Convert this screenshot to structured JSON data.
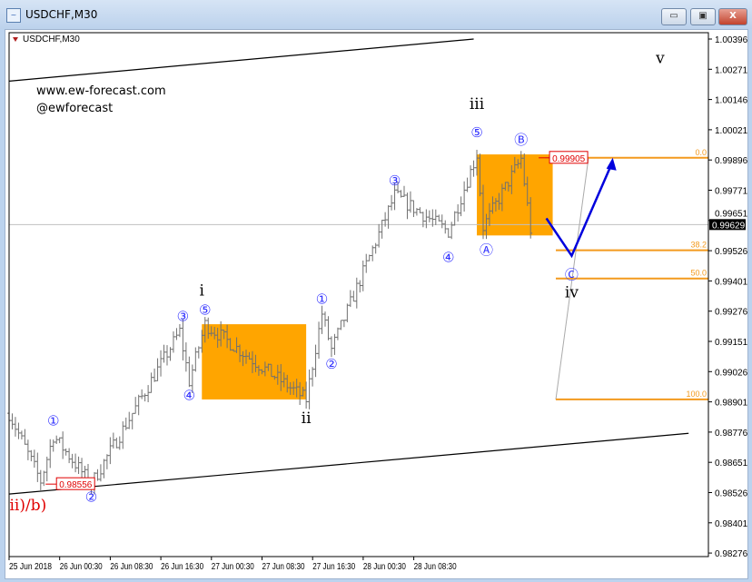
{
  "window": {
    "title": "USDCHF,M30",
    "icon": "chart-window-icon",
    "buttons": {
      "minimize": "▭",
      "restore": "▣",
      "close": "X"
    }
  },
  "chart_label": "USDCHF,M30",
  "watermark": {
    "site": "www.ew-forecast.com",
    "handle": "@ewforecast"
  },
  "chart_data": {
    "type": "ohlc",
    "symbol": "USDCHF",
    "timeframe": "M30",
    "ylim": [
      0.82276,
      1.00396
    ],
    "y_ticks": [
      "1.00396",
      "1.00271",
      "1.00146",
      "1.00021",
      "0.99896",
      "0.99771",
      "0.99651",
      "0.99526",
      "0.99401",
      "0.99276",
      "0.99151",
      "0.99026",
      "0.98901",
      "0.98776",
      "0.98651",
      "0.98526",
      "0.98401",
      "0.98276"
    ],
    "x_ticks": [
      "25 Jun 2018",
      "26 Jun 00:30",
      "26 Jun 08:30",
      "26 Jun 16:30",
      "27 Jun 00:30",
      "27 Jun 08:30",
      "27 Jun 16:30",
      "28 Jun 00:30",
      "28 Jun 08:30"
    ],
    "x_start": "25 Jun 16:30",
    "current_price": "0.99629",
    "price_path": [
      {
        "t": "25 Jun 16:30",
        "p": 0.98849
      },
      {
        "t": "25 Jun 21:30",
        "p": 0.98568
      },
      {
        "t": "25 Jun 23:30",
        "p": 0.98756
      },
      {
        "t": "26 Jun 05:30",
        "p": 0.98556
      },
      {
        "t": "26 Jun 19:30",
        "p": 0.99187
      },
      {
        "t": "26 Jun 21:00",
        "p": 0.98981
      },
      {
        "t": "26 Jun 23:30",
        "p": 0.99217
      },
      {
        "t": "27 Jun 07:30",
        "p": 0.9906
      },
      {
        "t": "27 Jun 15:30",
        "p": 0.98906
      },
      {
        "t": "27 Jun 18:00",
        "p": 0.99262
      },
      {
        "t": "27 Jun 19:30",
        "p": 0.99112
      },
      {
        "t": "28 Jun 05:30",
        "p": 0.9975
      },
      {
        "t": "28 Jun 14:00",
        "p": 0.996
      },
      {
        "t": "28 Jun 18:30",
        "p": 0.99919
      },
      {
        "t": "28 Jun 19:30",
        "p": 0.99619
      },
      {
        "t": "29 Jun 01:30",
        "p": 0.99901
      },
      {
        "t": "29 Jun 03:00",
        "p": 0.99608
      }
    ],
    "price_labels": [
      {
        "text": "0.99905",
        "p": 0.99905,
        "t": "29 Jun 06:00"
      },
      {
        "text": "0.98556",
        "p": 0.98556,
        "t": "26 Jun 00:00"
      }
    ],
    "fibonacci": {
      "high": 0.99905,
      "low": 0.98906,
      "levels": [
        {
          "label": "0.0",
          "p": 0.99905
        },
        {
          "label": "38.2",
          "p": 0.99523
        },
        {
          "label": "50.0",
          "p": 0.99406
        },
        {
          "label": "100.0",
          "p": 0.98906
        }
      ]
    },
    "boxes": [
      {
        "from": "26 Jun 23:00",
        "to": "27 Jun 15:30",
        "high": 0.99217,
        "low": 0.98906
      },
      {
        "from": "28 Jun 18:30",
        "to": "29 Jun 06:30",
        "high": 0.99919,
        "low": 0.99584
      }
    ],
    "trendlines": [
      {
        "from": {
          "t": "25 Jun 16:30",
          "p": 1.00222
        },
        "to": {
          "t": "28 Jun 18:00",
          "p": 1.00396
        }
      },
      {
        "from": {
          "t": "25 Jun 16:30",
          "p": 0.98515
        },
        "to": {
          "t": "30 Jun 04:00",
          "p": 0.98766
        }
      }
    ],
    "projection": [
      {
        "t": "29 Jun 05:30",
        "p": 0.99655
      },
      {
        "t": "29 Jun 09:30",
        "p": 0.995
      },
      {
        "t": "29 Jun 16:00",
        "p": 0.9989
      }
    ],
    "wave_labels": [
      {
        "text": "①",
        "t": "25 Jun 23:30",
        "p": 0.98818,
        "style": "circled"
      },
      {
        "text": "②",
        "t": "26 Jun 05:30",
        "p": 0.9854,
        "style": "circled",
        "below": true
      },
      {
        "text": "ii)/b)",
        "t": "25 Jun 19:30",
        "p": 0.9847,
        "style": "red",
        "below": true
      },
      {
        "text": "③",
        "t": "26 Jun 20:00",
        "p": 0.9925,
        "style": "circled"
      },
      {
        "text": "④",
        "t": "26 Jun 21:00",
        "p": 0.9896,
        "style": "circled",
        "below": true
      },
      {
        "text": "⑤",
        "t": "26 Jun 23:30",
        "p": 0.99275,
        "style": "circled"
      },
      {
        "text": "i",
        "t": "26 Jun 23:00",
        "p": 0.9934,
        "style": "roman"
      },
      {
        "text": "ii",
        "t": "27 Jun 15:30",
        "p": 0.9883,
        "style": "roman",
        "below": true
      },
      {
        "text": "①",
        "t": "27 Jun 18:00",
        "p": 0.9932,
        "style": "circled"
      },
      {
        "text": "②",
        "t": "27 Jun 19:30",
        "p": 0.9909,
        "style": "circled",
        "below": true
      },
      {
        "text": "③",
        "t": "28 Jun 05:30",
        "p": 0.9981,
        "style": "circled"
      },
      {
        "text": "④",
        "t": "28 Jun 14:00",
        "p": 0.9953,
        "style": "circled",
        "below": true
      },
      {
        "text": "⑤",
        "t": "28 Jun 18:30",
        "p": 1.0001,
        "style": "circled"
      },
      {
        "text": "iii",
        "t": "28 Jun 18:30",
        "p": 1.0011,
        "style": "roman"
      },
      {
        "text": "Ⓐ",
        "t": "28 Jun 20:00",
        "p": 0.9956,
        "style": "circled",
        "below": true
      },
      {
        "text": "Ⓑ",
        "t": "29 Jun 01:30",
        "p": 0.9998,
        "style": "circled"
      },
      {
        "text": "Ⓒ",
        "t": "29 Jun 09:30",
        "p": 0.9946,
        "style": "circled",
        "below": true
      },
      {
        "text": "iv",
        "t": "29 Jun 09:30",
        "p": 0.9935,
        "style": "roman",
        "below": true
      },
      {
        "text": "v",
        "t": "29 Jun 23:30",
        "p": 1.003,
        "style": "roman"
      }
    ],
    "colors": {
      "bars": "#707070",
      "box": "#ffa500",
      "fib": "#f39a1e",
      "wave": "#3030ff",
      "projection": "#0000dd",
      "label_red": "#e00000",
      "current_line": "#c0c0c0"
    }
  }
}
